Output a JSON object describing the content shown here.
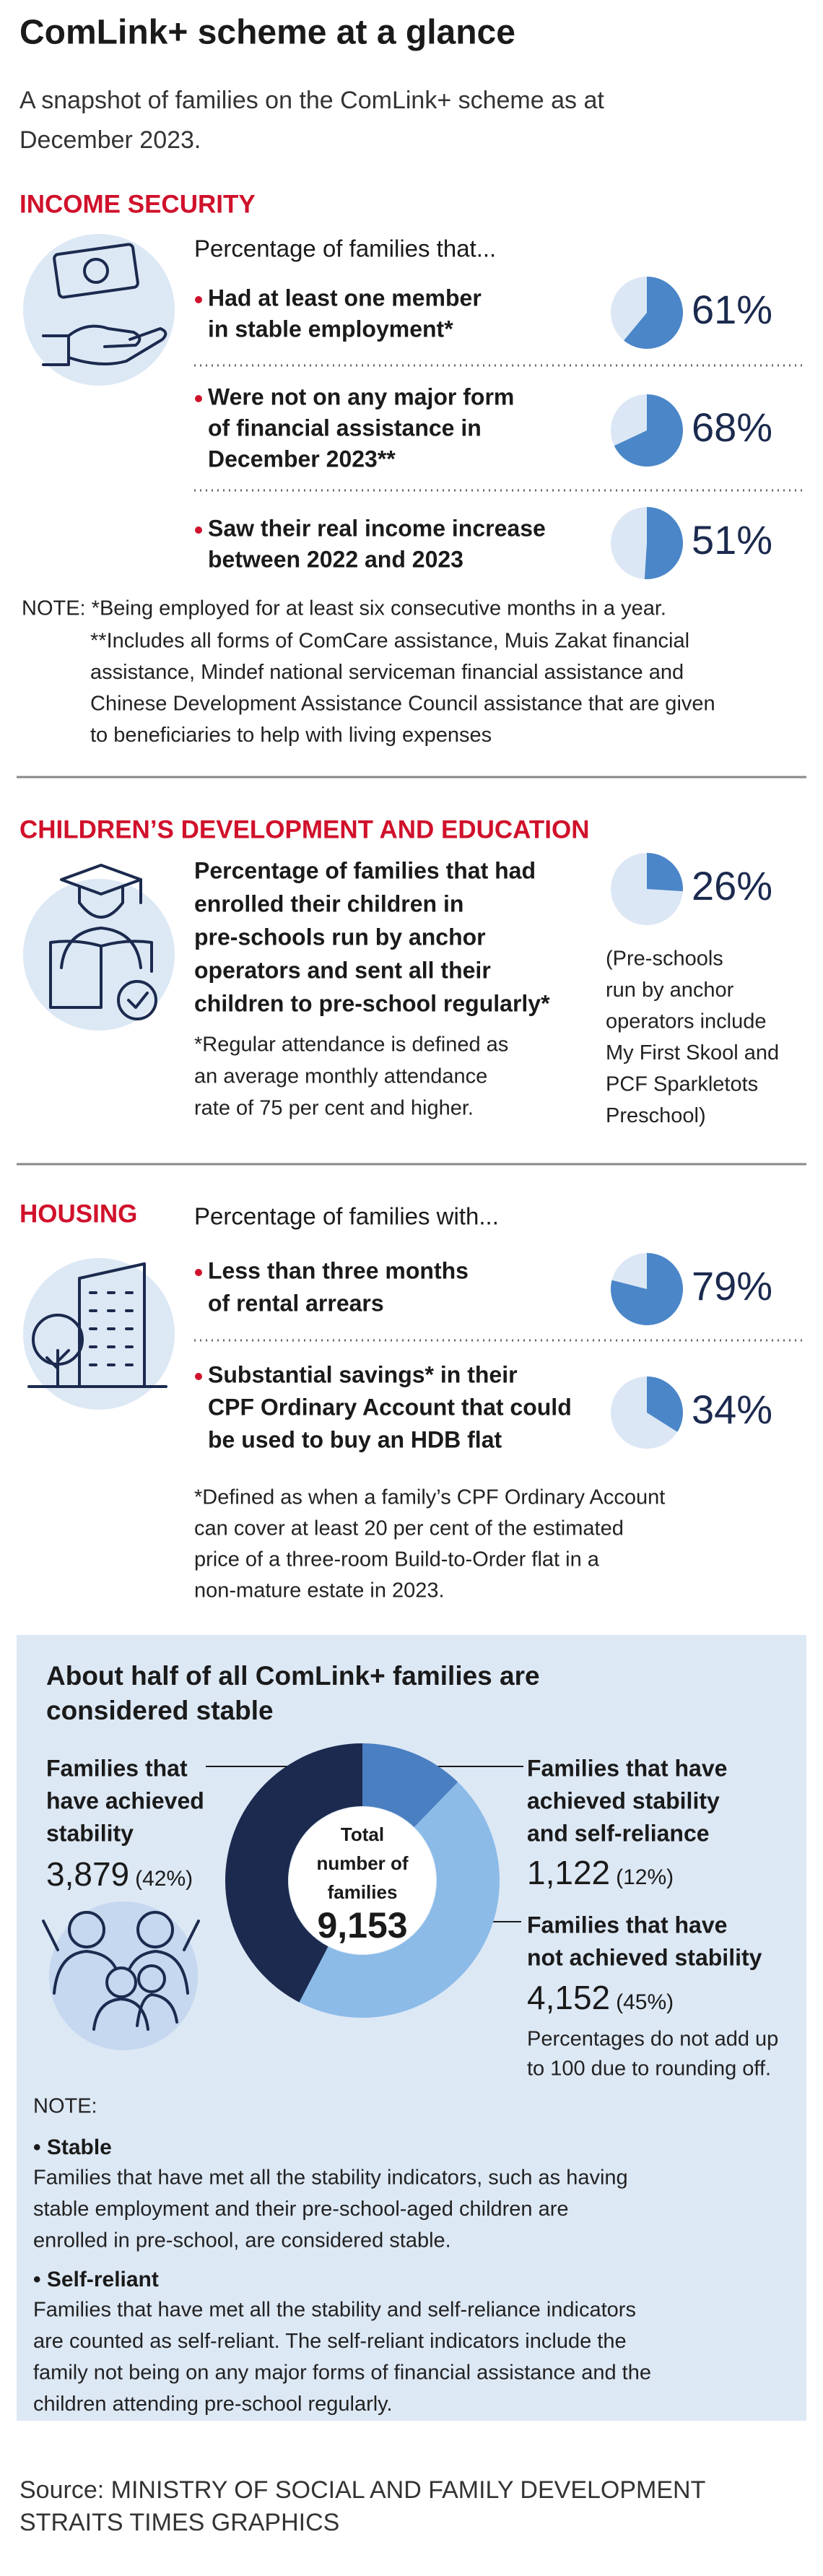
{
  "title": "ComLink+ scheme at a glance",
  "subtitle": [
    "A snapshot of families on the ComLink+ scheme as at",
    "December 2023."
  ],
  "colors": {
    "pie": "#4a86c8",
    "pie_track": "#dce7f5"
  },
  "income_security": {
    "heading": "INCOME SECURITY",
    "intro": "Percentage of families that...",
    "items": [
      {
        "lines": [
          "Had at least one member",
          "in stable employment*"
        ],
        "value": 61,
        "label": "61%"
      },
      {
        "lines": [
          "Were not on any major form",
          "of financial assistance in",
          "December 2023**"
        ],
        "value": 68,
        "label": "68%"
      },
      {
        "lines": [
          "Saw their real income increase",
          "between 2022 and 2023"
        ],
        "value": 51,
        "label": "51%"
      }
    ],
    "note": [
      "NOTE: *Being employed for at least six consecutive months in a year.",
      "**Includes all forms of ComCare assistance, Muis Zakat financial",
      "assistance, Mindef national serviceman financial assistance and",
      "Chinese Development Assistance Council assistance that are given",
      "to beneficiaries to help with living expenses"
    ]
  },
  "children": {
    "heading": "CHILDREN’S DEVELOPMENT AND EDUCATION",
    "lines": [
      "Percentage of families that had",
      "enrolled their children in",
      "pre-schools run by anchor",
      "operators and sent all their",
      "children to pre-school regularly*"
    ],
    "value": 26,
    "label": "26%",
    "aside": [
      "(Pre-schools",
      "run by anchor",
      "operators include",
      "My First Skool and",
      "PCF Sparkletots",
      "Preschool)"
    ],
    "footnote": [
      "*Regular attendance is defined as",
      "an average monthly attendance",
      "rate of 75 per cent and higher."
    ]
  },
  "housing": {
    "heading": "HOUSING",
    "intro": "Percentage of families with...",
    "items": [
      {
        "lines": [
          "Less than three months",
          "of rental arrears"
        ],
        "value": 79,
        "label": "79%"
      },
      {
        "lines": [
          "Substantial savings* in their",
          "CPF Ordinary Account that could",
          "be used to buy an HDB flat"
        ],
        "value": 34,
        "label": "34%"
      }
    ],
    "footnote": [
      "*Defined as when a family’s CPF Ordinary Account",
      "can cover at least 20 per cent of the estimated",
      "price of a three-room Build-to-Order flat in a",
      "non-mature estate in 2023."
    ]
  },
  "stability": {
    "title": [
      "About half of all ComLink+ families are",
      "considered stable"
    ],
    "total_label": [
      "Total",
      "number of",
      "families"
    ],
    "total": "9,153",
    "groups": [
      {
        "lines": [
          "Families that have",
          "achieved stability",
          "and self-reliance"
        ],
        "value": 1122,
        "label": "1,122",
        "share": "(12%)",
        "color": "#4a7fc1"
      },
      {
        "lines": [
          "Families that have",
          "not achieved stability"
        ],
        "value": 4152,
        "label": "4,152",
        "share": "(45%)",
        "color": "#8cbbe8"
      },
      {
        "lines": [
          "Families that",
          "have achieved",
          "stability"
        ],
        "value": 3879,
        "label": "3,879",
        "share": "(42%)",
        "color": "#1b2a4e"
      }
    ],
    "rounding_note": [
      "Percentages do not add up",
      "to 100 due to rounding off."
    ],
    "note_heading": "NOTE:",
    "notes": [
      {
        "term": "• Stable",
        "lines": [
          "Families that have met all the stability indicators, such as having",
          "stable employment and their pre-school-aged children are",
          "enrolled in pre-school, are considered stable."
        ]
      },
      {
        "term": "• Self-reliant",
        "lines": [
          "Families that have met all the stability and self-reliance indicators",
          "are counted as self-reliant. The self-reliant indicators include the",
          "family not being on any major forms of financial assistance and the",
          "children attending pre-school regularly."
        ]
      }
    ]
  },
  "source": [
    "Source: MINISTRY OF SOCIAL AND FAMILY DEVELOPMENT",
    "STRAITS TIMES GRAPHICS"
  ]
}
